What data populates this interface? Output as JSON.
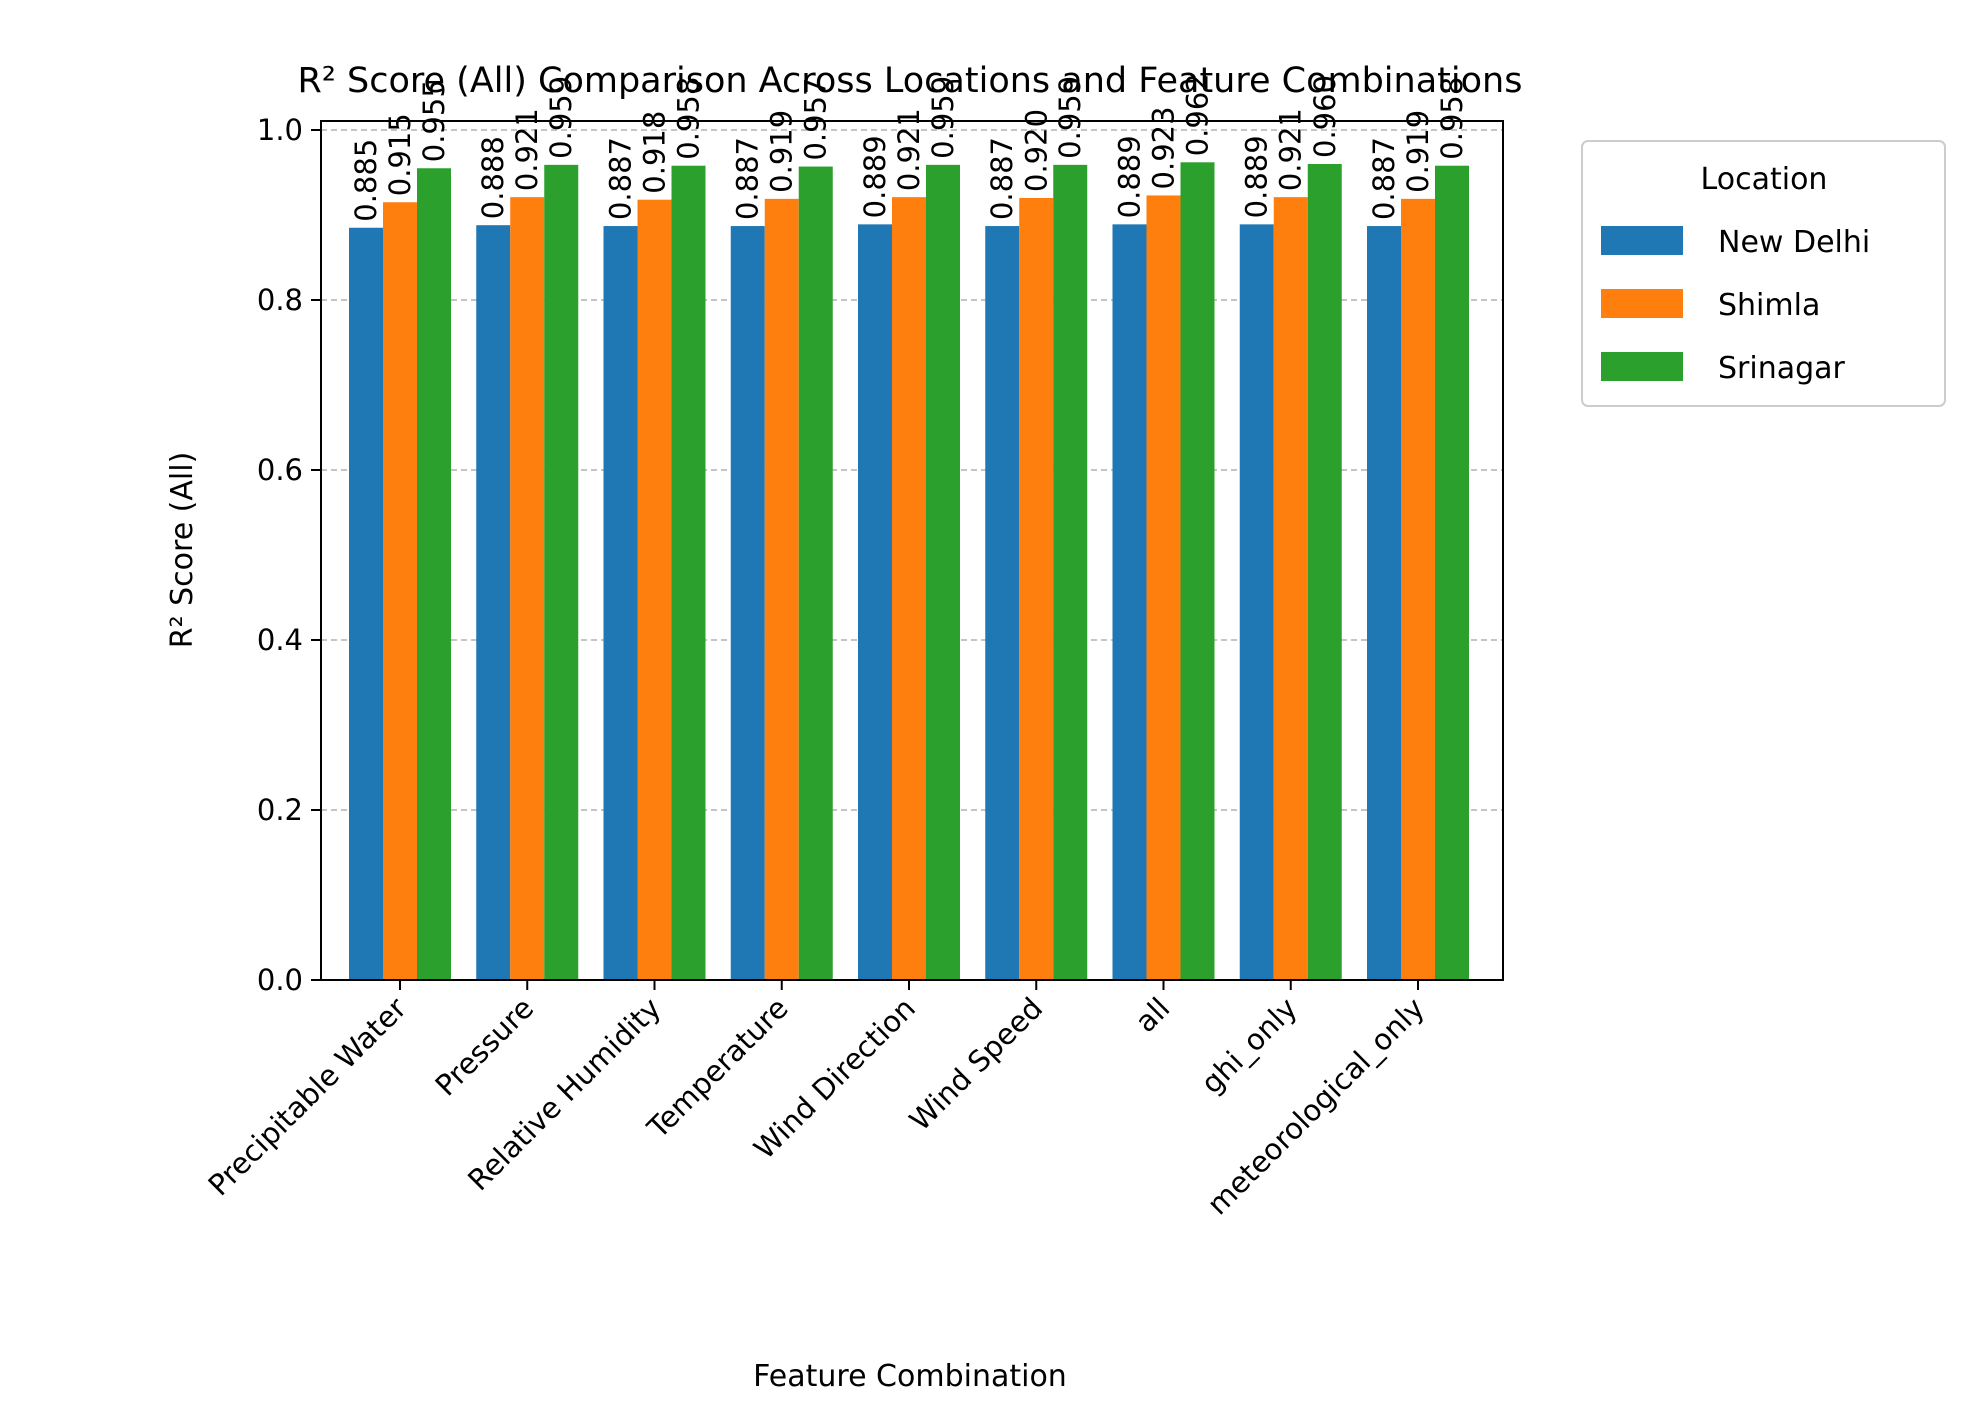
{
  "chart_data": {
    "type": "bar",
    "title": "R² Score (All) Comparison Across Locations and Feature Combinations",
    "xlabel": "Feature Combination",
    "ylabel": "R² Score (All)",
    "ylim": [
      0,
      1.0
    ],
    "yticks": [
      "0.0",
      "0.2",
      "0.4",
      "0.6",
      "0.8",
      "1.0"
    ],
    "grid": "y-dashed",
    "legend": {
      "title": "Location",
      "placement": "outside-upper-right"
    },
    "categories": [
      "Precipitable Water",
      "Pressure",
      "Relative Humidity",
      "Temperature",
      "Wind Direction",
      "Wind Speed",
      "all",
      "ghi_only",
      "meteorological_only"
    ],
    "series": [
      {
        "name": "New Delhi",
        "color": "#1f77b4",
        "values": [
          0.885,
          0.888,
          0.887,
          0.887,
          0.889,
          0.887,
          0.889,
          0.889,
          0.887
        ],
        "labels": [
          "0.885",
          "0.888",
          "0.887",
          "0.887",
          "0.889",
          "0.887",
          "0.889",
          "0.889",
          "0.887"
        ]
      },
      {
        "name": "Shimla",
        "color": "#ff7f0e",
        "values": [
          0.915,
          0.921,
          0.918,
          0.919,
          0.921,
          0.92,
          0.923,
          0.921,
          0.919
        ],
        "labels": [
          "0.915",
          "0.921",
          "0.918",
          "0.919",
          "0.921",
          "0.920",
          "0.923",
          "0.921",
          "0.919"
        ]
      },
      {
        "name": "Srinagar",
        "color": "#2ca02c",
        "values": [
          0.955,
          0.959,
          0.958,
          0.957,
          0.959,
          0.959,
          0.962,
          0.96,
          0.958
        ],
        "labels": [
          "0.955",
          "0.959",
          "0.958",
          "0.957",
          "0.959",
          "0.959",
          "0.962",
          "0.960",
          "0.958"
        ]
      }
    ]
  }
}
